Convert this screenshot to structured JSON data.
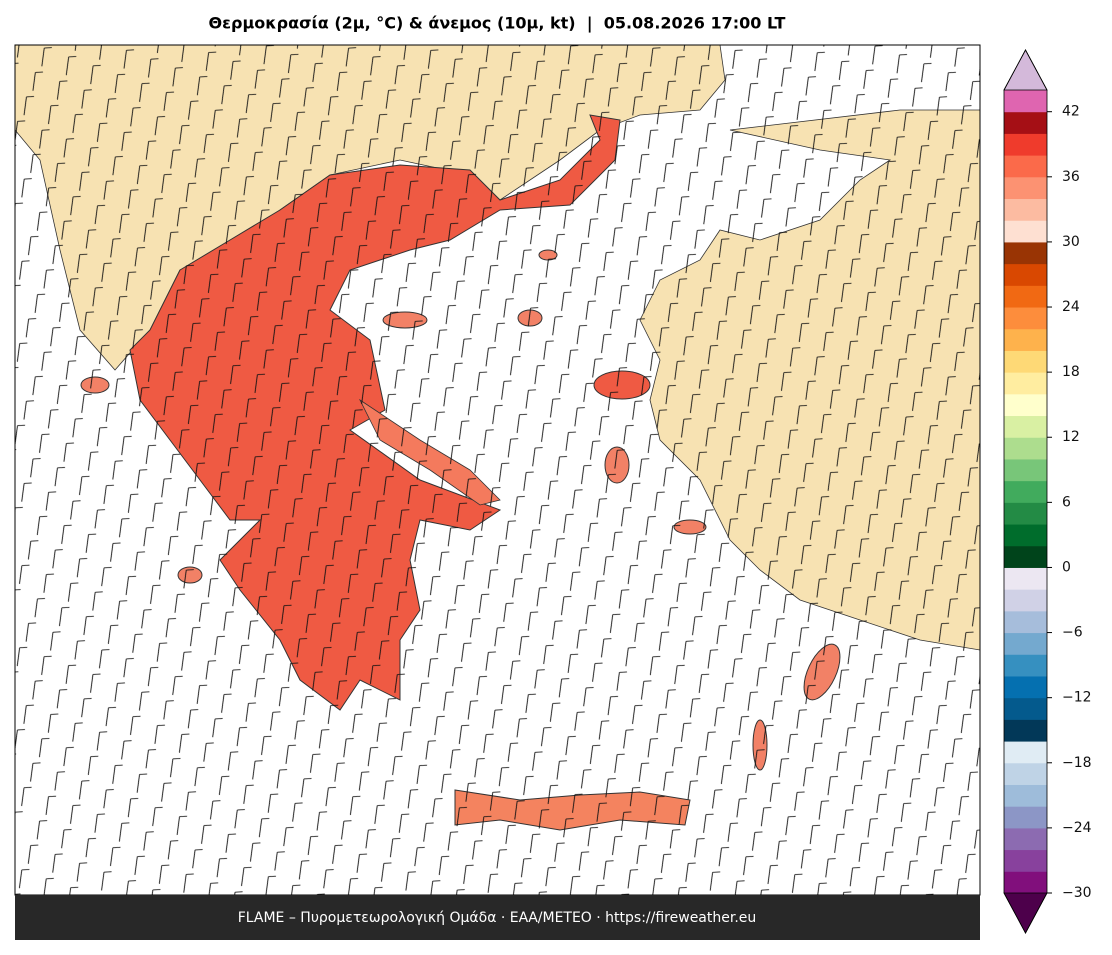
{
  "title": "Θερμοκρασία (2μ, °C) & άνεμος (10μ, kt)  |  05.08.2026 17:00 LT",
  "footer": "FLAME – Πυρομετεωρολογική Ομάδα · ΕΑΑ/METEO · https://fireweather.eu",
  "colorbar": {
    "clim": [
      -30,
      44
    ],
    "colors": [
      "#810f7c",
      "#88419d",
      "#8c6bb1",
      "#8c96c6",
      "#9ebcda",
      "#bfd3e6",
      "#e0ecf4",
      "#023858",
      "#045a8d",
      "#0570b0",
      "#3690c0",
      "#74a9cf",
      "#a6bddb",
      "#d0d1e6",
      "#ece7f2",
      "#00441b",
      "#006d2c",
      "#238b45",
      "#41ab5d",
      "#78c679",
      "#addd8e",
      "#d9f0a3",
      "#ffffcc",
      "#ffeda0",
      "#fed976",
      "#feb24c",
      "#fd8d3c",
      "#f16913",
      "#d94801",
      "#993404",
      "#fee0d2",
      "#fcbba1",
      "#fc9272",
      "#fb6a4a",
      "#ef3b2c",
      "#a50f15",
      "#df65b0"
    ],
    "under_color": "#4d004b",
    "over_color": "#d4b9da",
    "ticks": [
      {
        "value": -30,
        "label": "−30"
      },
      {
        "value": -24,
        "label": "−24"
      },
      {
        "value": -18,
        "label": "−18"
      },
      {
        "value": -12,
        "label": "−12"
      },
      {
        "value": -6,
        "label": "−6"
      },
      0,
      6,
      12,
      18,
      24,
      30,
      36,
      42
    ]
  }
}
